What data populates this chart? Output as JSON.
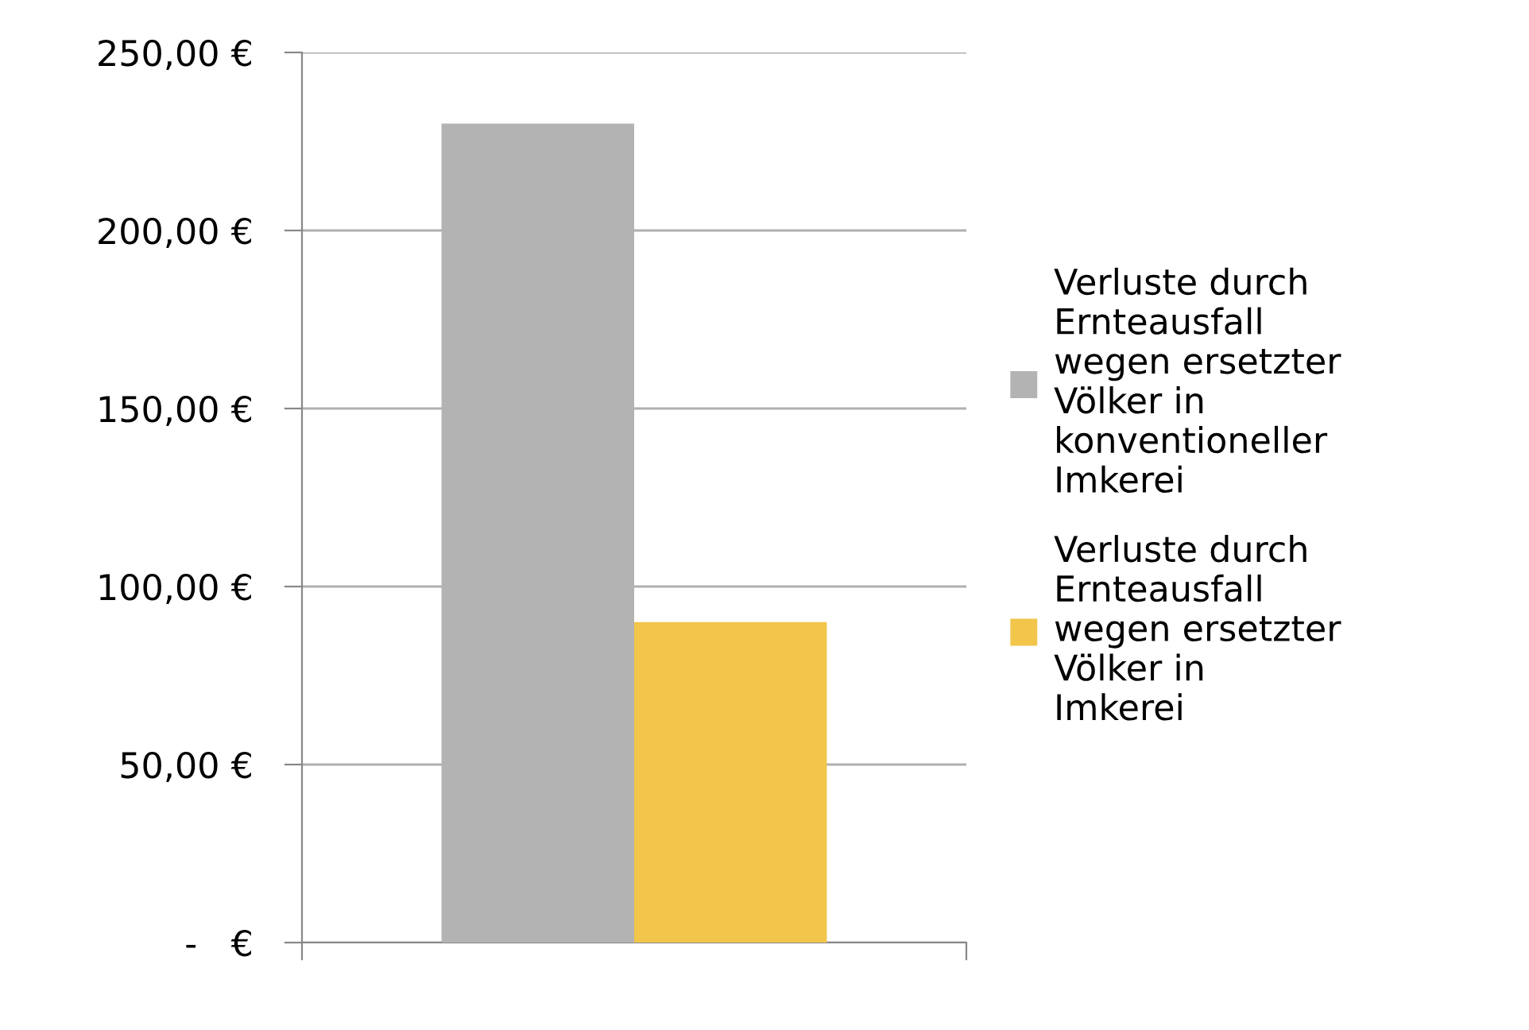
{
  "chart_data": {
    "type": "bar",
    "categories": [
      null
    ],
    "series": [
      {
        "name": "Verluste durch\nErnteausfall\nwegen ersetzter\nVölker in\nkonventioneller\nImkerei",
        "color": "#b3b3b3",
        "values": [
          230
        ]
      },
      {
        "name": "Verluste durch\nErnteausfall\nwegen ersetzter\nVölker in\nImkerei",
        "color": "#f2c54b",
        "values": [
          90
        ]
      }
    ],
    "ylim": [
      0,
      250
    ],
    "yticks": [
      {
        "value": 0,
        "label": "-   €"
      },
      {
        "value": 50,
        "label": "50,00 €"
      },
      {
        "value": 100,
        "label": "100,00 €"
      },
      {
        "value": 150,
        "label": "150,00 €"
      },
      {
        "value": 200,
        "label": "200,00 €"
      },
      {
        "value": 250,
        "label": "250,00 €"
      }
    ],
    "grid": "y",
    "legend": "right"
  }
}
